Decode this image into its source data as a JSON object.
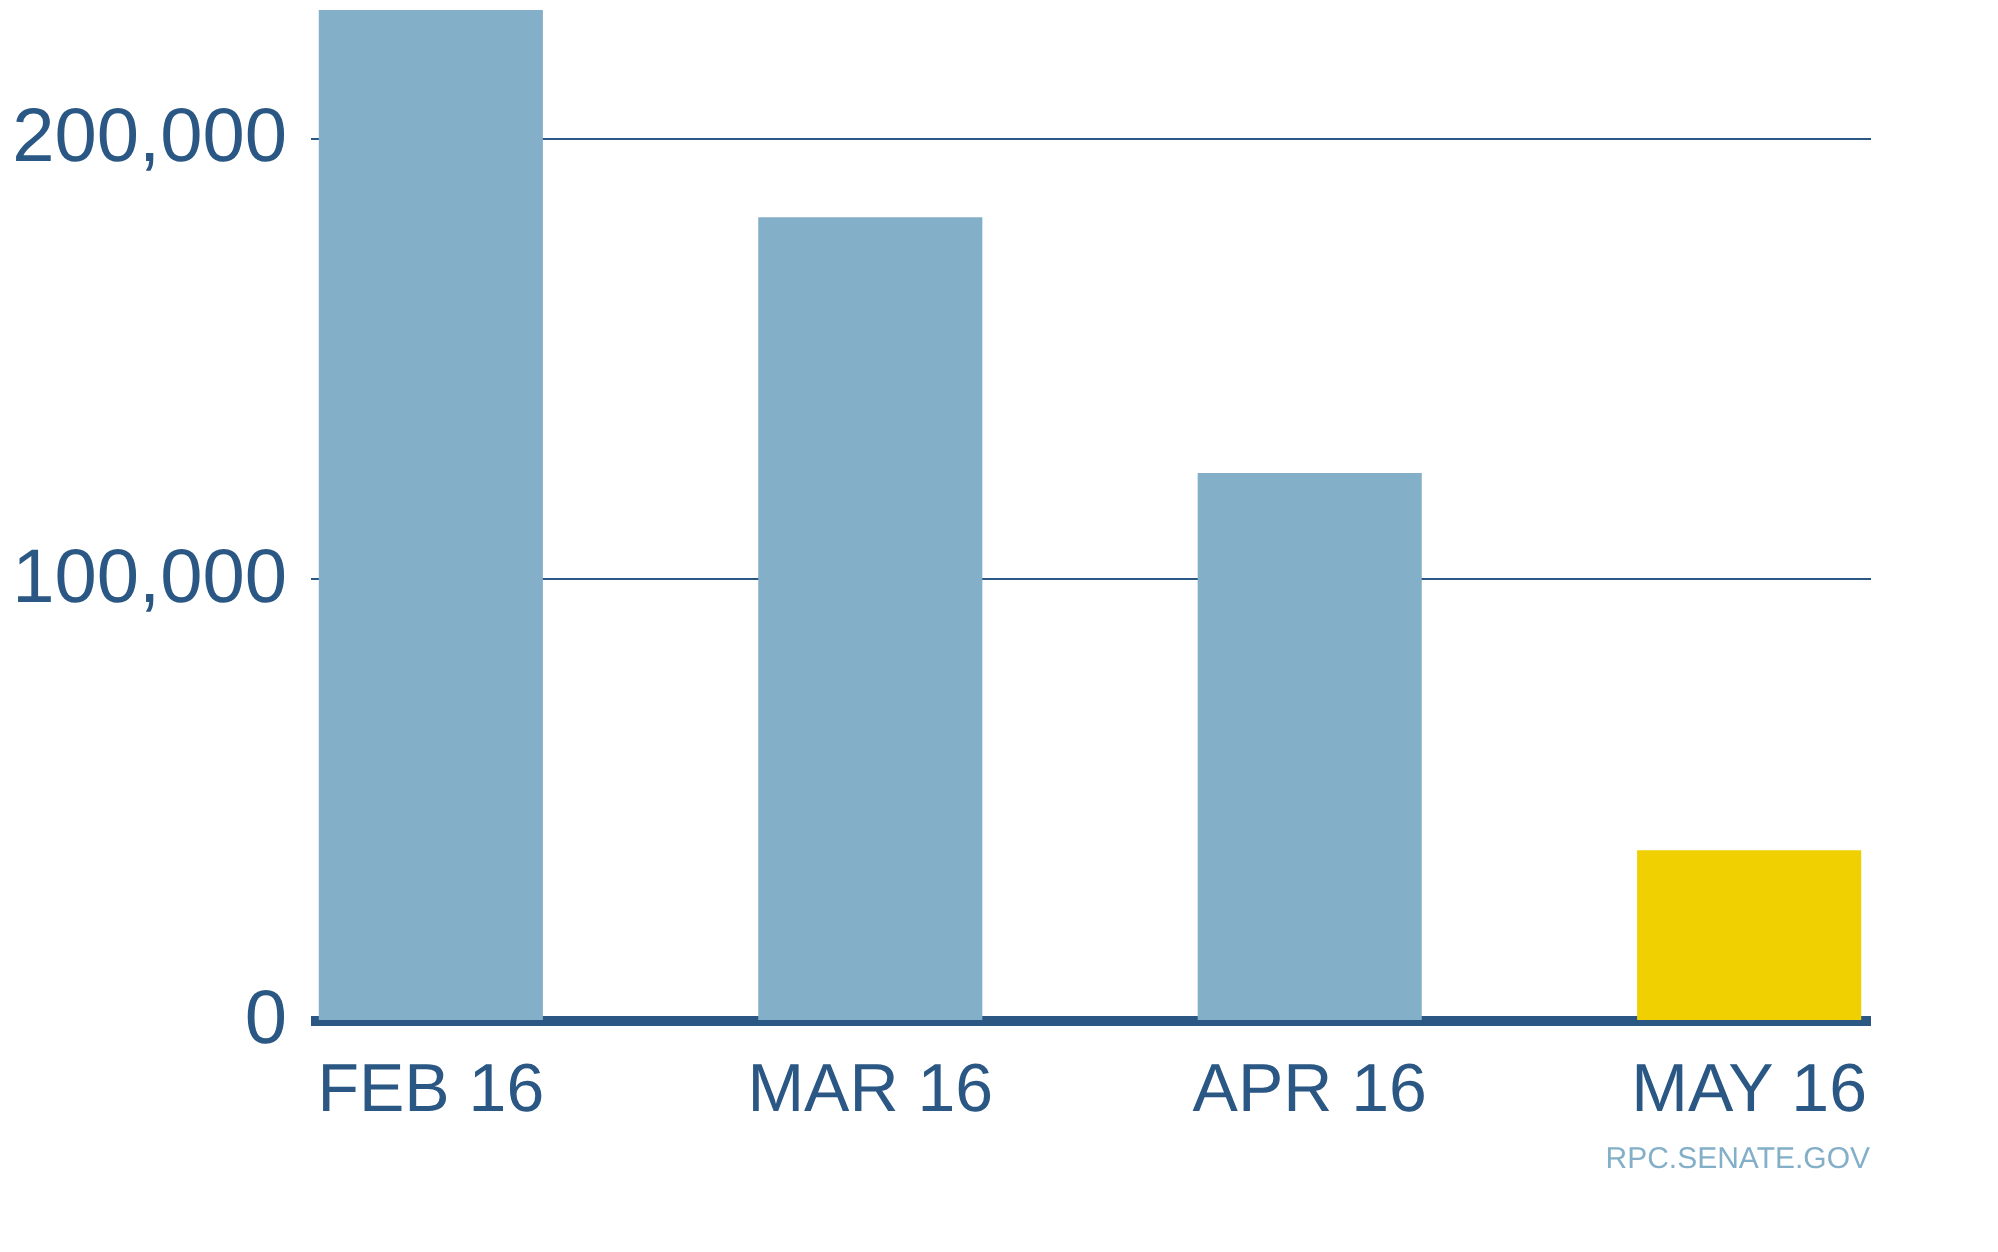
{
  "chart_data": {
    "type": "bar",
    "categories": [
      "FEB 16",
      "MAR 16",
      "APR 16",
      "MAY 16"
    ],
    "values": [
      229000,
      182000,
      124000,
      38500
    ],
    "colors": [
      "#84afc8",
      "#84afc8",
      "#84afc8",
      "#f0d000"
    ],
    "ylim": [
      0,
      229000
    ],
    "yticks": [
      0,
      {
        "value": 100000,
        "label": "100,000"
      },
      {
        "value": 200000,
        "label": "200,000"
      }
    ],
    "grid": "y",
    "annotations": [
      "RPC.SENATE.GOV"
    ]
  }
}
